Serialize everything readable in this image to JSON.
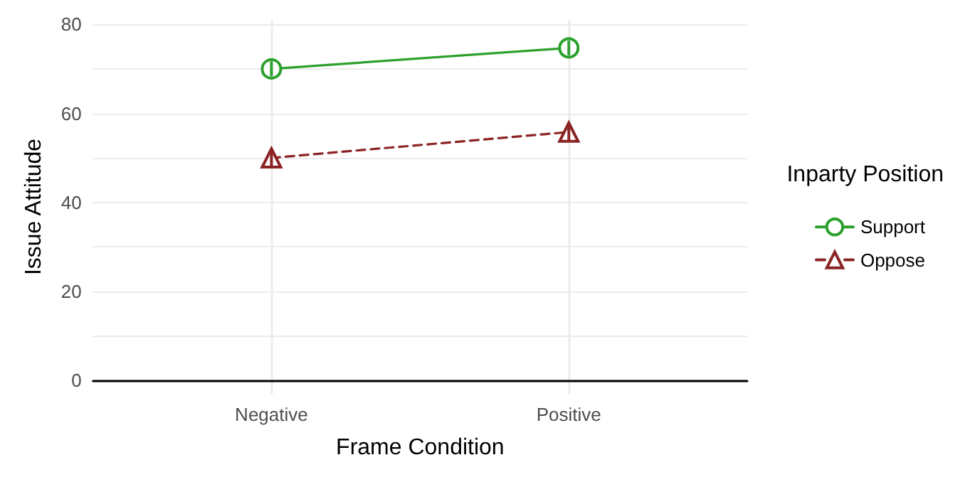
{
  "chart_data": {
    "type": "line",
    "xlabel": "Frame Condition",
    "ylabel": "Issue Attitude",
    "legend_title": "Inparty Position",
    "categories": [
      "Negative",
      "Positive"
    ],
    "series": [
      {
        "name": "Support",
        "color": "#2ca02c",
        "values": [
          70,
          74.7
        ],
        "errors": [
          1.7,
          1.7
        ],
        "marker": "circle",
        "line_style": "solid"
      },
      {
        "name": "Oppose",
        "color": "#8b2323",
        "values": [
          50,
          55.8
        ],
        "errors": [
          2,
          2
        ],
        "marker": "triangle",
        "line_style": "dashed"
      }
    ],
    "ylim": [
      -3,
      81
    ],
    "yticks": [
      0,
      {
        "value": 10,
        "label": null
      },
      20,
      {
        "value": 30,
        "label": null
      },
      40,
      {
        "value": 50,
        "label": null
      },
      60,
      {
        "value": 70,
        "label": null
      },
      80
    ],
    "grid": true,
    "legend": "right"
  }
}
